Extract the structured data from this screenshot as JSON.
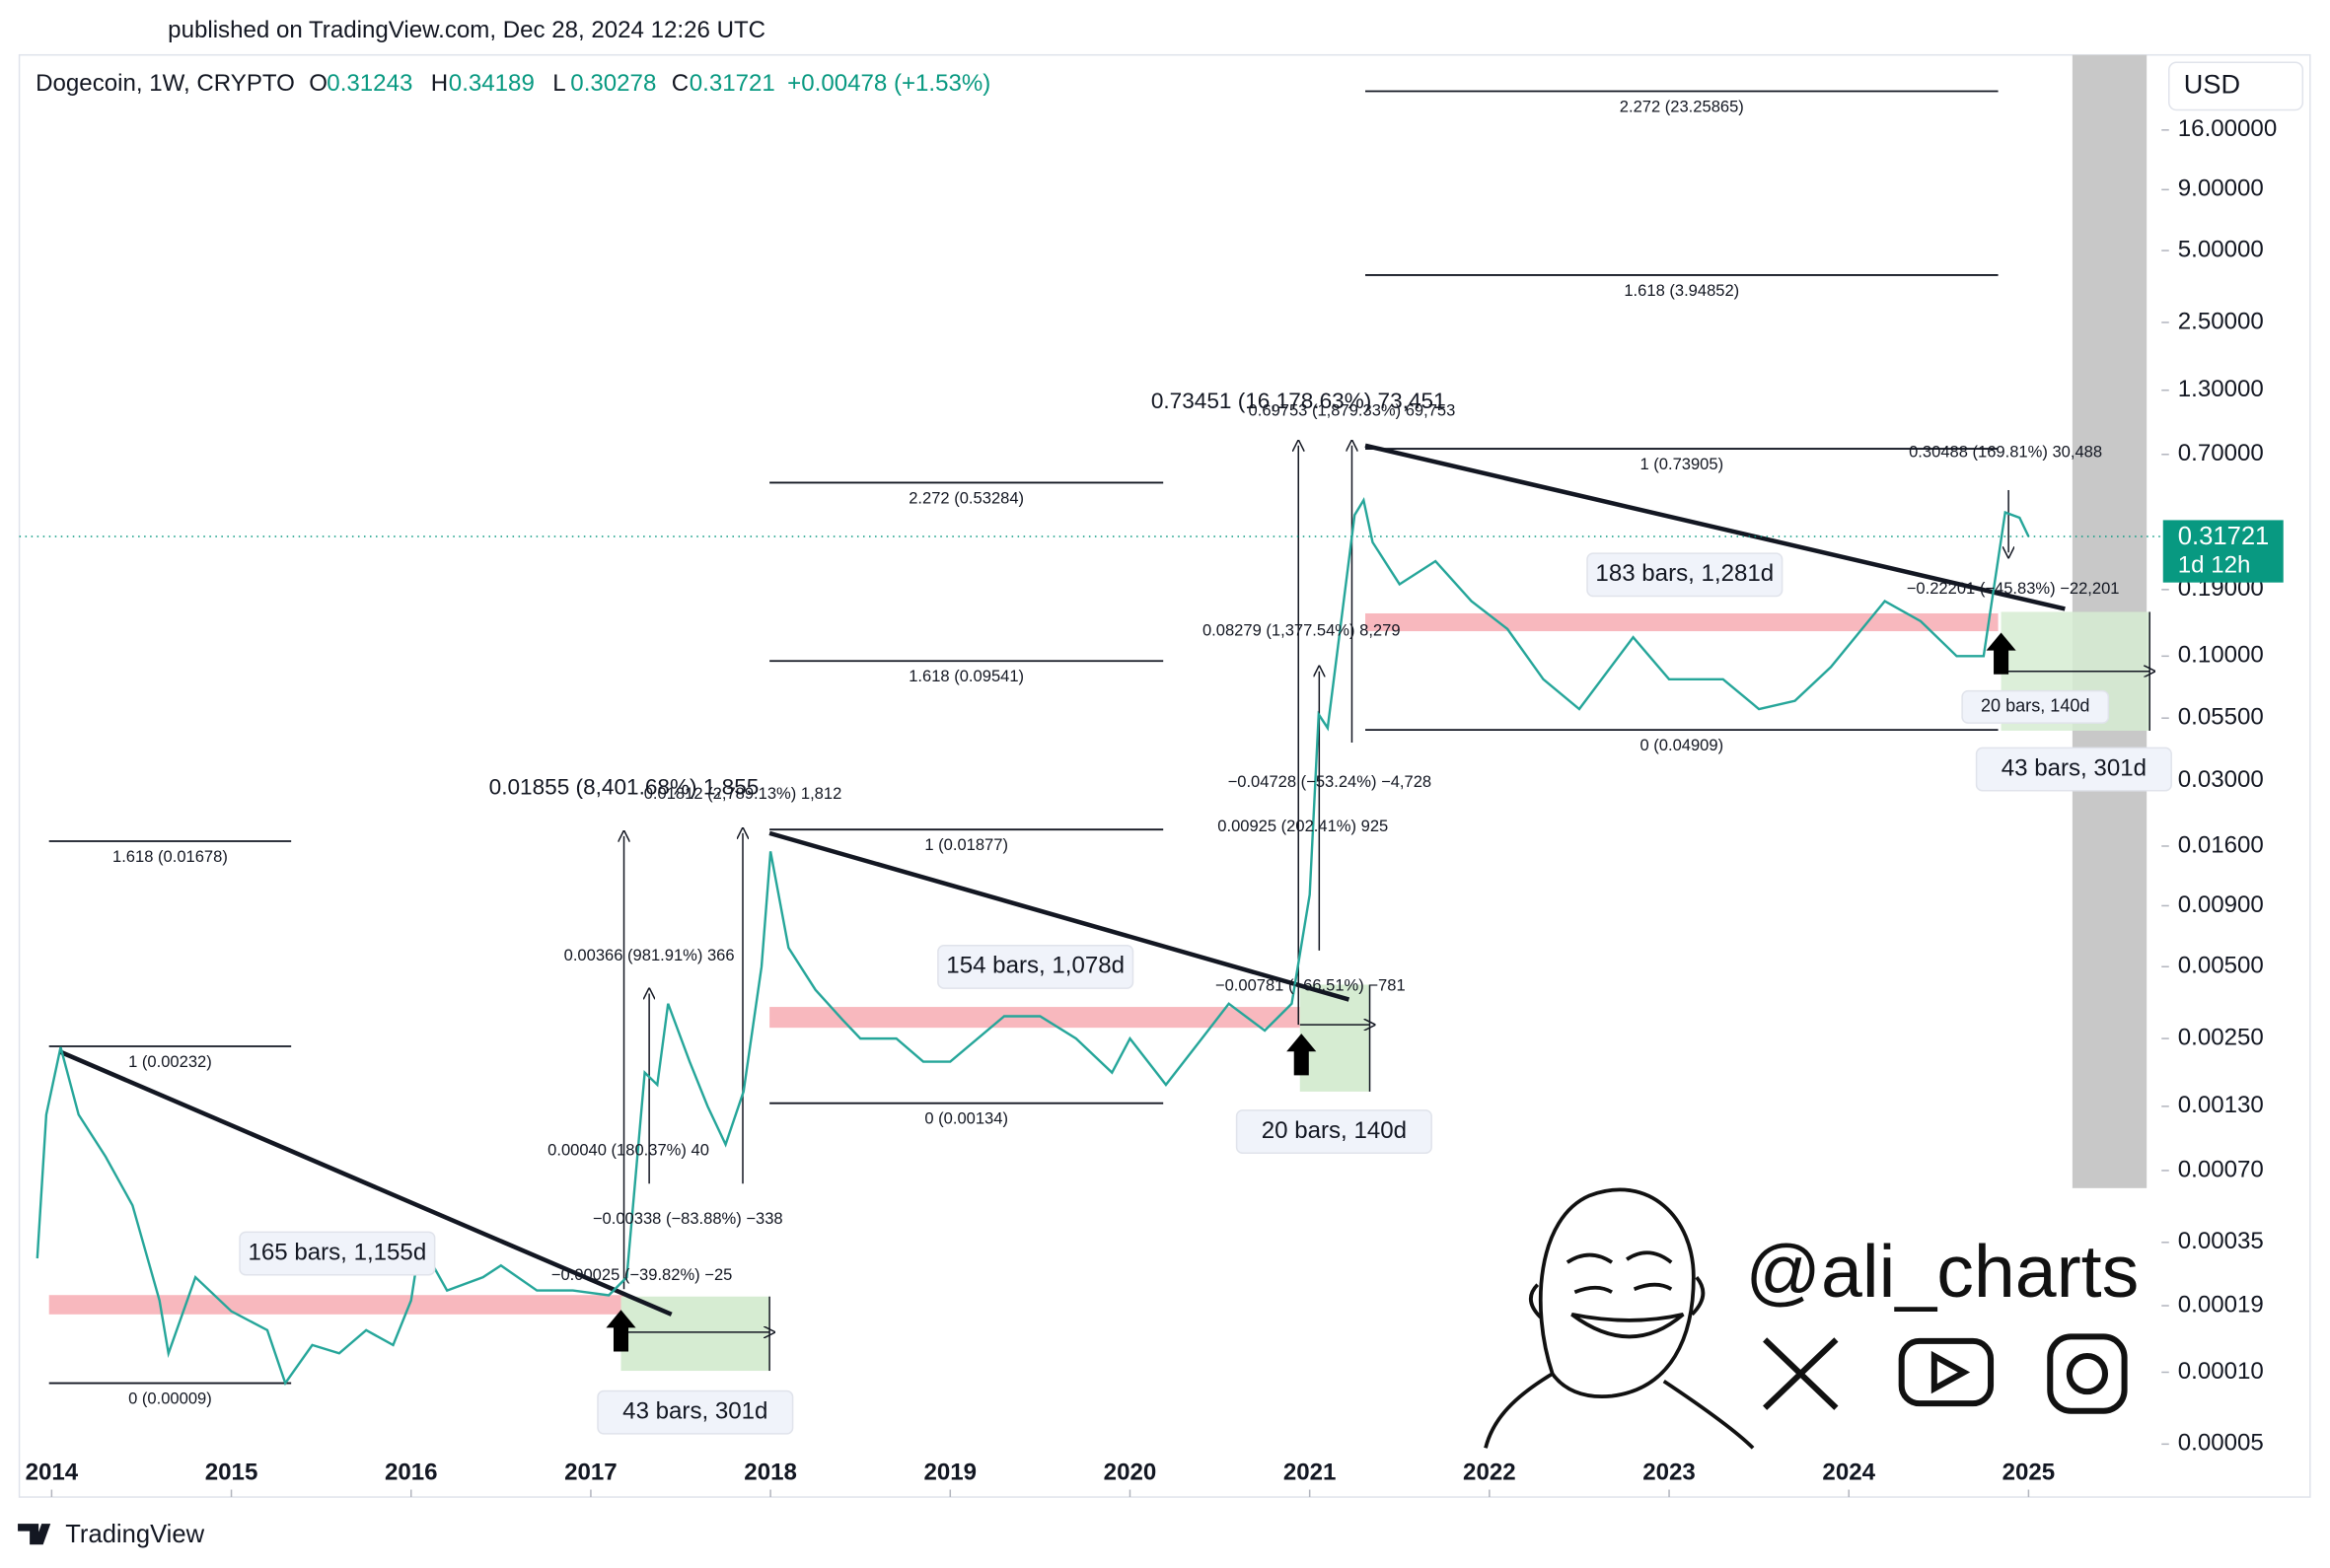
{
  "published": "published on TradingView.com, Dec 28, 2024 12:26 UTC",
  "chart_data": {
    "type": "line",
    "title": "Dogecoin, 1W, CRYPTO",
    "ohlc": [
      {
        "label": "O",
        "value": 0.31243
      },
      {
        "label": "H",
        "value": 0.34189
      },
      {
        "label": "L",
        "value": 0.30278
      },
      {
        "label": "C",
        "value": 0.31721
      }
    ],
    "change": "+0.00478 (+1.53%)",
    "currency": "USD",
    "color": "#26a69a",
    "x": [
      2013.92,
      2013.97,
      2014.05,
      2014.15,
      2014.3,
      2014.45,
      2014.6,
      2014.65,
      2014.8,
      2015.0,
      2015.2,
      2015.3,
      2015.45,
      2015.6,
      2015.75,
      2015.9,
      2016.0,
      2016.05,
      2016.2,
      2016.4,
      2016.5,
      2016.7,
      2016.9,
      2017.1,
      2017.2,
      2017.3,
      2017.37,
      2017.43,
      2017.55,
      2017.65,
      2017.75,
      2017.85,
      2017.95,
      2018.0,
      2018.1,
      2018.25,
      2018.4,
      2018.5,
      2018.7,
      2018.85,
      2019.0,
      2019.3,
      2019.5,
      2019.7,
      2019.9,
      2020.0,
      2020.2,
      2020.4,
      2020.55,
      2020.75,
      2020.9,
      2021.0,
      2021.05,
      2021.1,
      2021.25,
      2021.3,
      2021.35,
      2021.5,
      2021.7,
      2021.9,
      2022.1,
      2022.3,
      2022.5,
      2022.8,
      2023.0,
      2023.3,
      2023.5,
      2023.7,
      2023.9,
      2024.2,
      2024.4,
      2024.6,
      2024.75,
      2024.87,
      2024.95,
      2025.0
    ],
    "values": [
      0.0003,
      0.0012,
      0.0023,
      0.0012,
      0.0008,
      0.0005,
      0.0002,
      0.00012,
      0.00025,
      0.00018,
      0.00015,
      9e-05,
      0.00013,
      0.00012,
      0.00015,
      0.00013,
      0.0002,
      0.00035,
      0.00022,
      0.00025,
      0.00028,
      0.00022,
      0.00022,
      0.00021,
      0.00025,
      0.0018,
      0.0016,
      0.0035,
      0.002,
      0.0013,
      0.0009,
      0.0015,
      0.005,
      0.0152,
      0.006,
      0.004,
      0.003,
      0.0025,
      0.0025,
      0.002,
      0.002,
      0.0031,
      0.0031,
      0.0025,
      0.0018,
      0.0025,
      0.0016,
      0.0025,
      0.0035,
      0.0027,
      0.0035,
      0.01,
      0.057,
      0.05,
      0.39,
      0.45,
      0.3,
      0.2,
      0.25,
      0.17,
      0.13,
      0.08,
      0.06,
      0.12,
      0.08,
      0.08,
      0.06,
      0.065,
      0.09,
      0.17,
      0.14,
      0.1,
      0.1,
      0.4,
      0.38,
      0.317
    ],
    "log_scale": true,
    "xlim": [
      2013.82,
      2025.74
    ],
    "ylim": [
      3e-05,
      33
    ],
    "xticks": [
      2014,
      2015,
      2016,
      2017,
      2018,
      2019,
      2020,
      2021,
      2022,
      2023,
      2024,
      2025
    ],
    "yticks": [
      {
        "value": 16,
        "label": "16.00000"
      },
      {
        "value": 9,
        "label": "9.00000"
      },
      {
        "value": 5,
        "label": "5.00000"
      },
      {
        "value": 2.5,
        "label": "2.50000"
      },
      {
        "value": 1.3,
        "label": "1.30000"
      },
      {
        "value": 0.7,
        "label": "0.70000"
      },
      {
        "value": 0.19,
        "label": "0.19000"
      },
      {
        "value": 0.1,
        "label": "0.10000"
      },
      {
        "value": 0.055,
        "label": "0.05500"
      },
      {
        "value": 0.03,
        "label": "0.03000"
      },
      {
        "value": 0.016,
        "label": "0.01600"
      },
      {
        "value": 0.009,
        "label": "0.00900"
      },
      {
        "value": 0.005,
        "label": "0.00500"
      },
      {
        "value": 0.0025,
        "label": "0.00250"
      },
      {
        "value": 0.0013,
        "label": "0.00130"
      },
      {
        "value": 0.0007,
        "label": "0.00070"
      },
      {
        "value": 0.00035,
        "label": "0.00035"
      },
      {
        "value": 0.00019,
        "label": "0.00019"
      },
      {
        "value": 0.0001,
        "label": "0.00010"
      },
      {
        "value": 5e-05,
        "label": "0.00005"
      }
    ],
    "last_price": 0.31721,
    "countdown": "1d 12h",
    "fib_levels": [
      {
        "label": "1.618 (0.01678)",
        "value": 0.01678
      },
      {
        "label": "1 (0.00232)",
        "value": 0.00232
      },
      {
        "label": "0 (0.00009)",
        "value": 9e-05
      },
      {
        "label": "2.272 (0.53284)",
        "value": 0.53284
      },
      {
        "label": "1.618 (0.09541)",
        "value": 0.09541
      },
      {
        "label": "1 (0.01877)",
        "value": 0.01877
      },
      {
        "label": "0 (0.00134)",
        "value": 0.00134
      },
      {
        "label": "2.272 (23.25865)",
        "value": 23.25865
      },
      {
        "label": "1.618 (3.94852)",
        "value": 3.94852
      },
      {
        "label": "1 (0.73905)",
        "value": 0.73905
      },
      {
        "label": "0 (0.04909)",
        "value": 0.04909
      }
    ],
    "measurements": [
      "0.01855 (8,401.68%) 1,855",
      "0.01812 (2,789.13%) 1,812",
      "0.00366 (981.91%) 366",
      "0.00040 (180.37%) 40",
      "−0.00338 (−83.88%) −338",
      "−0.00025 (−39.82%) −25",
      "0.73451 (16,178.63%) 73,451",
      "0.69753 (1,879.33%) 69,753",
      "0.08279 (1,377.54%) 8,279",
      "−0.04728 (−53.24%) −4,728",
      "0.00925 (202.41%) 925",
      "−0.00781 (−66.51%) −781",
      "0.30488 (169.81%) 30,488",
      "−0.22201 (−45.83%) −22,201"
    ],
    "ranges": [
      "165 bars, 1,155d",
      "154 bars, 1,078d",
      "183 bars, 1,281d",
      "43 bars, 301d",
      "20 bars, 140d",
      "20 bars, 140d",
      "43 bars, 301d"
    ]
  },
  "watermark": "@ali_charts",
  "footer": "TradingView"
}
